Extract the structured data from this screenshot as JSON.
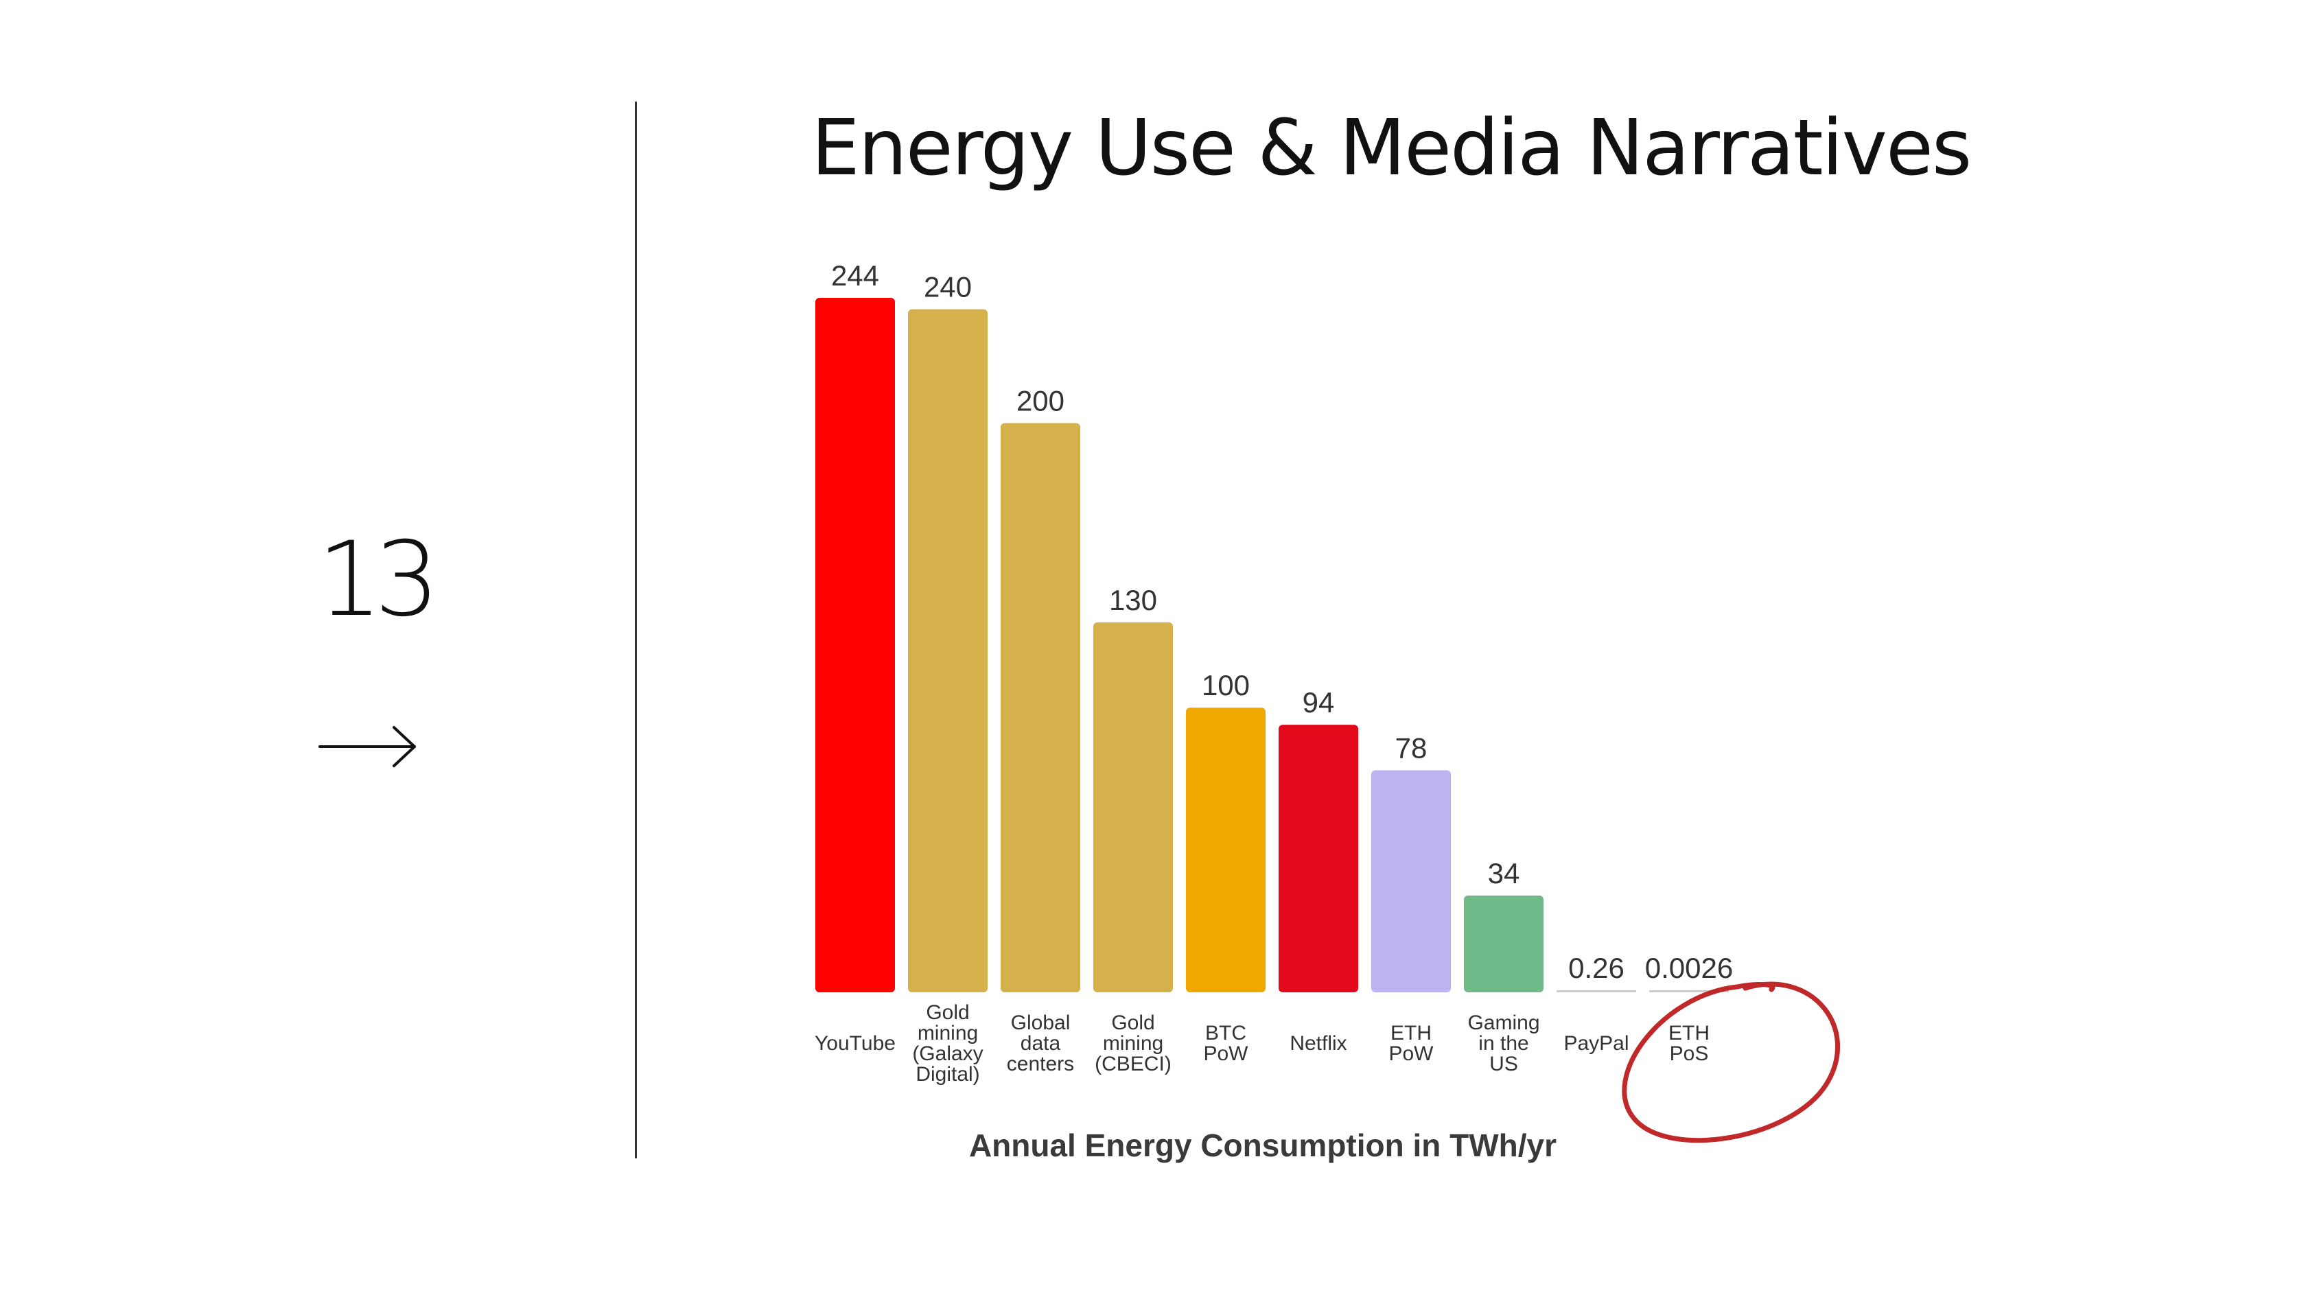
{
  "slide": {
    "number": "13",
    "arrow_icon": "right-arrow-icon"
  },
  "title": "Energy Use & Media Narratives",
  "chart_data": {
    "type": "bar",
    "categories": [
      "YouTube",
      "Gold mining (Galaxy Digital)",
      "Global data centers",
      "Gold mining (CBECI)",
      "BTC PoW",
      "Netflix",
      "ETH PoW",
      "Gaming in the US",
      "PayPal",
      "ETH PoS"
    ],
    "values": [
      244,
      240,
      200,
      130,
      100,
      94,
      78,
      34,
      0.26,
      0.0026
    ],
    "value_labels": [
      "244",
      "240",
      "200",
      "130",
      "100",
      "94",
      "78",
      "34",
      "0.26",
      "0.0026"
    ],
    "colors": [
      "#ff0000",
      "#d5b14c",
      "#d5b14c",
      "#d5b14c",
      "#f0a800",
      "#e20a1a",
      "#bdb3f2",
      "#6fba88",
      "#cccccc",
      "#cccccc"
    ],
    "xlabel": "Annual Energy Consumption in TWh/yr",
    "ylabel": "",
    "ylim": [
      0,
      244
    ],
    "grid": false,
    "annotation": {
      "type": "hand-drawn-circle",
      "target": "ETH PoS",
      "color": "#c0282a"
    }
  }
}
